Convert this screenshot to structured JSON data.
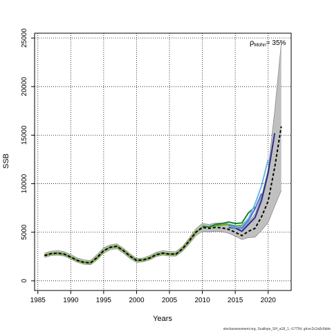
{
  "chart_data": {
    "type": "line",
    "xlabel": "Years",
    "ylabel": "SSB",
    "xlim": [
      1984.5,
      2023.5
    ],
    "ylim": [
      -1000,
      25500
    ],
    "xticks": [
      1985,
      1990,
      1995,
      2000,
      2005,
      2010,
      2015,
      2020
    ],
    "yticks": [
      0,
      5000,
      10000,
      15000,
      20000,
      25000
    ],
    "grid": true,
    "annotation": {
      "rho": "ρ",
      "sub": "Mohn",
      "value": "= 35%"
    },
    "footnote": "stockassessment.org, Scallops_SH_a18_1, r17754, git:ec2c2a0c6dde",
    "colors": {
      "band": "#c0c0c0",
      "band_edge": "#8a8a8a",
      "base": "#000000",
      "retro": [
        "#6ab8de",
        "#2b2f8f",
        "#4a6de0",
        "#1a7f3a",
        "#66b022"
      ]
    },
    "base": {
      "x": [
        1986,
        1987,
        1988,
        1989,
        1990,
        1991,
        1992,
        1993,
        1994,
        1995,
        1996,
        1997,
        1998,
        1999,
        2000,
        2001,
        2002,
        2003,
        2004,
        2005,
        2006,
        2007,
        2008,
        2009,
        2010,
        2011,
        2012,
        2013,
        2014,
        2015,
        2016,
        2017,
        2018,
        2019,
        2020,
        2021,
        2022
      ],
      "y": [
        2600,
        2800,
        2850,
        2750,
        2450,
        2100,
        1900,
        1850,
        2400,
        3100,
        3450,
        3550,
        3100,
        2550,
        2100,
        2150,
        2350,
        2700,
        2850,
        2750,
        2750,
        3300,
        4100,
        5000,
        5500,
        5400,
        5500,
        5450,
        5300,
        5000,
        4650,
        5100,
        5400,
        6600,
        8200,
        11700,
        15900
      ],
      "lo": [
        2400,
        2600,
        2650,
        2550,
        2250,
        1900,
        1700,
        1650,
        2150,
        2850,
        3200,
        3300,
        2850,
        2300,
        1900,
        1950,
        2150,
        2500,
        2650,
        2550,
        2550,
        3050,
        3800,
        4650,
        5100,
        5050,
        5100,
        5050,
        4900,
        4600,
        4250,
        4450,
        4500,
        5200,
        6000,
        7700,
        9300
      ],
      "hi": [
        2850,
        3050,
        3100,
        3000,
        2700,
        2350,
        2150,
        2100,
        2700,
        3400,
        3700,
        3800,
        3350,
        2800,
        2300,
        2350,
        2600,
        2950,
        3100,
        3000,
        3000,
        3550,
        4400,
        5350,
        5900,
        5800,
        5950,
        5950,
        5850,
        5600,
        5200,
        6000,
        6900,
        8700,
        11500,
        17500,
        24500
      ]
    },
    "series": [
      {
        "x": [
          2014,
          2015,
          2016,
          2017,
          2018,
          2019,
          2020
        ],
        "y": [
          5600,
          5500,
          5600,
          6400,
          7900,
          9800,
          12500
        ]
      },
      {
        "x": [
          2014,
          2015,
          2016,
          2017,
          2018,
          2019,
          2020,
          2021
        ],
        "y": [
          5500,
          5450,
          5100,
          5800,
          6500,
          8300,
          11100,
          15200
        ]
      },
      {
        "x": [
          2014,
          2015,
          2016,
          2017,
          2018,
          2019
        ],
        "y": [
          5700,
          5600,
          5400,
          6200,
          7400,
          9000
        ]
      },
      {
        "x": [
          2010,
          2011,
          2012,
          2013,
          2014,
          2015,
          2016,
          2017,
          2018
        ],
        "y": [
          5600,
          5550,
          5800,
          5900,
          6050,
          5900,
          5950,
          7000,
          7600
        ]
      },
      {
        "x": [
          2010,
          2011,
          2012,
          2013,
          2014,
          2015,
          2016,
          2017
        ],
        "y": [
          5650,
          5550,
          5650,
          5750,
          5800,
          5650,
          5700,
          6400
        ]
      }
    ]
  }
}
